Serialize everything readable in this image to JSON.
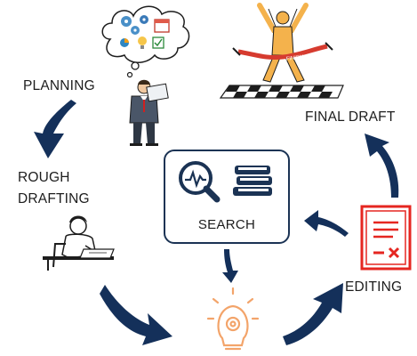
{
  "labels": {
    "planning": "PLANNING",
    "rough_line1": "ROUGH",
    "rough_line2": "DRAFTING",
    "final_draft": "FINAL DRAFT",
    "editing": "EDITING",
    "search": "SEARCH"
  },
  "finish_banner": "FINISH",
  "colors": {
    "arrow": "#14305a",
    "search_border": "#1b3354",
    "editing_red": "#e52620",
    "bulb_orange": "#f3a46a",
    "figure_orange": "#f4b24c"
  },
  "icons": [
    "thought-bubble-icon",
    "businessman-icon",
    "writer-at-desk-icon",
    "finish-line-runner-icon",
    "analytics-magnifier-icon",
    "books-icon",
    "lightbulb-gear-icon",
    "rejected-document-icon"
  ]
}
